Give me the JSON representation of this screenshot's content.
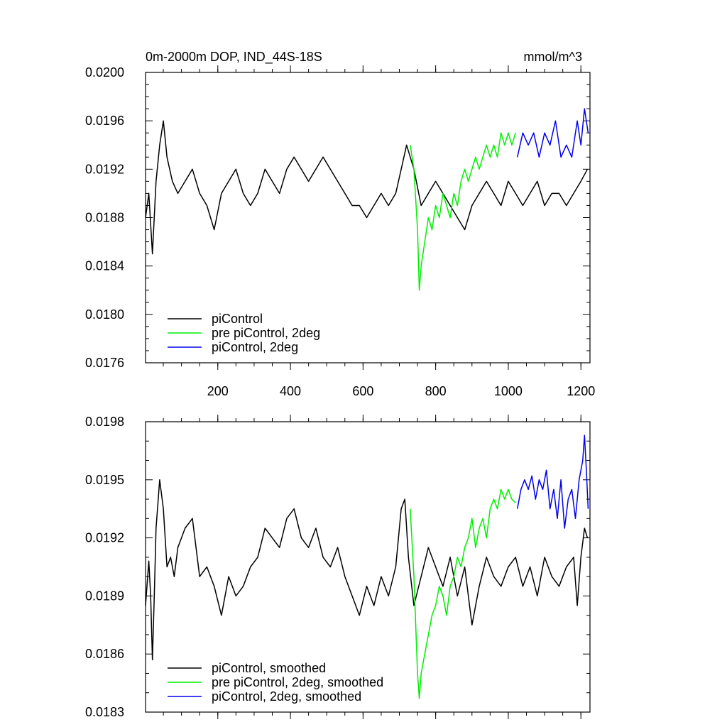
{
  "chart_data": [
    {
      "type": "line",
      "title": "0m-2000m DOP, IND_44S-18S",
      "units": "mmol/m^3",
      "xlabel": "",
      "ylabel": "",
      "xlim": [
        1,
        1225
      ],
      "ylim": [
        0.0176,
        0.02
      ],
      "x_ticks": [
        200,
        400,
        600,
        800,
        1000,
        1200
      ],
      "x_tick_labels": [
        "200",
        "400",
        "600",
        "800",
        "1000",
        "1200"
      ],
      "y_ticks": [
        0.0176,
        0.018,
        0.0184,
        0.0188,
        0.0192,
        0.0196,
        0.02
      ],
      "y_tick_labels": [
        "0.0176",
        "0.0180",
        "0.0184",
        "0.0188",
        "0.0192",
        "0.0196",
        "0.0200"
      ],
      "legend_position": "bottom-left",
      "series": [
        {
          "name": "piControl",
          "color": "#000000",
          "x": [
            1,
            10,
            20,
            30,
            40,
            50,
            60,
            75,
            90,
            110,
            130,
            150,
            170,
            190,
            210,
            230,
            250,
            270,
            290,
            310,
            330,
            350,
            370,
            390,
            410,
            430,
            450,
            470,
            490,
            510,
            530,
            550,
            570,
            590,
            610,
            630,
            650,
            670,
            690,
            705,
            720,
            740,
            760,
            780,
            800,
            820,
            840,
            860,
            880,
            900,
            920,
            940,
            960,
            980,
            1000,
            1020,
            1040,
            1060,
            1080,
            1100,
            1120,
            1140,
            1160,
            1180,
            1200,
            1218
          ],
          "values": [
            0.0188,
            0.019,
            0.0185,
            0.0191,
            0.0194,
            0.0196,
            0.0193,
            0.0191,
            0.019,
            0.0191,
            0.0192,
            0.019,
            0.0189,
            0.0187,
            0.019,
            0.0191,
            0.0192,
            0.019,
            0.0189,
            0.019,
            0.0192,
            0.0191,
            0.019,
            0.0192,
            0.0193,
            0.0192,
            0.0191,
            0.0192,
            0.0193,
            0.0192,
            0.0191,
            0.019,
            0.0189,
            0.0189,
            0.0188,
            0.0189,
            0.019,
            0.0189,
            0.019,
            0.0192,
            0.0194,
            0.0192,
            0.0189,
            0.019,
            0.0191,
            0.019,
            0.0189,
            0.0188,
            0.0187,
            0.0189,
            0.019,
            0.0191,
            0.019,
            0.0189,
            0.0191,
            0.019,
            0.0189,
            0.019,
            0.0191,
            0.0189,
            0.019,
            0.019,
            0.0189,
            0.019,
            0.0191,
            0.0192
          ]
        },
        {
          "name": "pre piControl, 2deg",
          "color": "#00ee00",
          "x": [
            730,
            740,
            750,
            755,
            760,
            770,
            780,
            790,
            800,
            810,
            820,
            830,
            840,
            850,
            860,
            870,
            880,
            890,
            900,
            910,
            920,
            930,
            940,
            950,
            960,
            970,
            980,
            990,
            1000,
            1010,
            1020
          ],
          "values": [
            0.0194,
            0.0192,
            0.0187,
            0.0182,
            0.0184,
            0.0186,
            0.0188,
            0.0187,
            0.0189,
            0.0188,
            0.019,
            0.0189,
            0.0188,
            0.019,
            0.0189,
            0.0191,
            0.0192,
            0.0191,
            0.0192,
            0.0193,
            0.0192,
            0.0193,
            0.0194,
            0.0193,
            0.0194,
            0.0193,
            0.0195,
            0.0194,
            0.0195,
            0.0194,
            0.0195
          ]
        },
        {
          "name": "piControl, 2deg",
          "color": "#0000ee",
          "x": [
            1025,
            1040,
            1055,
            1070,
            1085,
            1100,
            1115,
            1130,
            1145,
            1160,
            1175,
            1190,
            1200,
            1210,
            1220
          ],
          "values": [
            0.0193,
            0.0195,
            0.0194,
            0.0195,
            0.0193,
            0.0195,
            0.0194,
            0.0196,
            0.0193,
            0.0194,
            0.0193,
            0.0196,
            0.0194,
            0.0197,
            0.0195
          ]
        }
      ]
    },
    {
      "type": "line",
      "title": "",
      "xlabel": "",
      "ylabel": "",
      "xlim": [
        1,
        1225
      ],
      "ylim": [
        0.0183,
        0.0198
      ],
      "x_ticks": [
        200,
        400,
        600,
        800,
        1000,
        1200
      ],
      "y_ticks": [
        0.0183,
        0.0186,
        0.0189,
        0.0192,
        0.0195,
        0.0198
      ],
      "y_tick_labels": [
        "0.0183",
        "0.0186",
        "0.0189",
        "0.0192",
        "0.0195",
        "0.0198"
      ],
      "legend_position": "bottom-left",
      "series": [
        {
          "name": "piControl, smoothed",
          "color": "#000000",
          "x": [
            1,
            10,
            15,
            20,
            25,
            30,
            40,
            50,
            60,
            70,
            80,
            90,
            110,
            130,
            150,
            170,
            190,
            210,
            230,
            250,
            270,
            290,
            310,
            330,
            350,
            370,
            390,
            410,
            430,
            450,
            470,
            490,
            510,
            530,
            550,
            570,
            590,
            610,
            630,
            650,
            670,
            690,
            705,
            715,
            725,
            740,
            760,
            780,
            800,
            820,
            840,
            860,
            880,
            900,
            920,
            940,
            960,
            980,
            1000,
            1020,
            1040,
            1060,
            1080,
            1100,
            1120,
            1140,
            1160,
            1180,
            1190,
            1200,
            1210,
            1218
          ],
          "values": [
            0.01885,
            0.01908,
            0.0189,
            0.01857,
            0.0189,
            0.01925,
            0.0195,
            0.01935,
            0.01905,
            0.0191,
            0.019,
            0.01915,
            0.01925,
            0.0193,
            0.019,
            0.01905,
            0.01895,
            0.0188,
            0.019,
            0.0189,
            0.01895,
            0.01905,
            0.0191,
            0.01925,
            0.0192,
            0.01915,
            0.0193,
            0.01935,
            0.0192,
            0.01915,
            0.01925,
            0.0191,
            0.01905,
            0.01915,
            0.019,
            0.0189,
            0.0188,
            0.01895,
            0.01885,
            0.019,
            0.0189,
            0.01905,
            0.01935,
            0.0194,
            0.0191,
            0.01885,
            0.019,
            0.01915,
            0.01905,
            0.01895,
            0.0191,
            0.0189,
            0.01905,
            0.01875,
            0.01895,
            0.0191,
            0.019,
            0.01895,
            0.01905,
            0.0191,
            0.01895,
            0.01905,
            0.0189,
            0.0191,
            0.019,
            0.01895,
            0.01905,
            0.0191,
            0.01885,
            0.0191,
            0.01925,
            0.0192
          ]
        },
        {
          "name": "pre piControl, 2deg, smoothed",
          "color": "#00ee00",
          "x": [
            730,
            740,
            750,
            755,
            760,
            770,
            780,
            790,
            800,
            810,
            820,
            830,
            840,
            850,
            860,
            870,
            880,
            890,
            900,
            910,
            920,
            930,
            940,
            950,
            960,
            970,
            980,
            990,
            1000,
            1010,
            1020
          ],
          "values": [
            0.01935,
            0.019,
            0.0185,
            0.01837,
            0.0185,
            0.0186,
            0.0187,
            0.0188,
            0.01885,
            0.01895,
            0.0189,
            0.0188,
            0.01895,
            0.019,
            0.0191,
            0.01905,
            0.01915,
            0.0192,
            0.0193,
            0.01915,
            0.01925,
            0.0193,
            0.0192,
            0.01935,
            0.0194,
            0.01935,
            0.01945,
            0.0194,
            0.01945,
            0.0194,
            0.01938
          ]
        },
        {
          "name": "piControl, 2deg, smoothed",
          "color": "#0000ee",
          "x": [
            1025,
            1035,
            1045,
            1055,
            1065,
            1075,
            1085,
            1095,
            1105,
            1115,
            1125,
            1135,
            1145,
            1155,
            1165,
            1175,
            1185,
            1195,
            1205,
            1210,
            1215,
            1220
          ],
          "values": [
            0.01935,
            0.01945,
            0.0195,
            0.01945,
            0.01952,
            0.0194,
            0.0195,
            0.01945,
            0.01955,
            0.01935,
            0.01945,
            0.0193,
            0.0195,
            0.01925,
            0.0194,
            0.01945,
            0.0193,
            0.0195,
            0.0196,
            0.01973,
            0.01955,
            0.01935
          ]
        }
      ]
    }
  ]
}
